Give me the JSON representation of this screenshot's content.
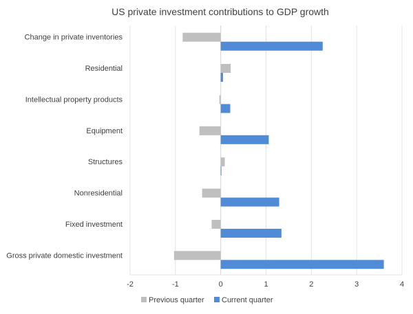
{
  "chart_data": {
    "type": "bar",
    "orientation": "horizontal",
    "title": "US private investment contributions to GDP growth",
    "xlabel": "",
    "ylabel": "",
    "categories": [
      "Change in private inventories",
      "Residential",
      "Intellectual property products",
      "Equipment",
      "Structures",
      "Nonresidential",
      "Fixed investment",
      "Gross private domestic investment"
    ],
    "series": [
      {
        "name": "Previous quarter",
        "color": "#bfbfbf",
        "values": [
          -0.84,
          0.22,
          -0.03,
          -0.47,
          0.09,
          -0.41,
          -0.2,
          -1.03
        ]
      },
      {
        "name": "Current quarter",
        "color": "#4f8bd6",
        "values": [
          2.25,
          0.05,
          0.21,
          1.06,
          0.01,
          1.29,
          1.34,
          3.6
        ]
      }
    ],
    "xlim": [
      -2,
      4
    ],
    "xticks": [
      "-2",
      "-1",
      "0",
      "1",
      "2",
      "3",
      "4"
    ],
    "grid": true,
    "legend": "bottom"
  }
}
